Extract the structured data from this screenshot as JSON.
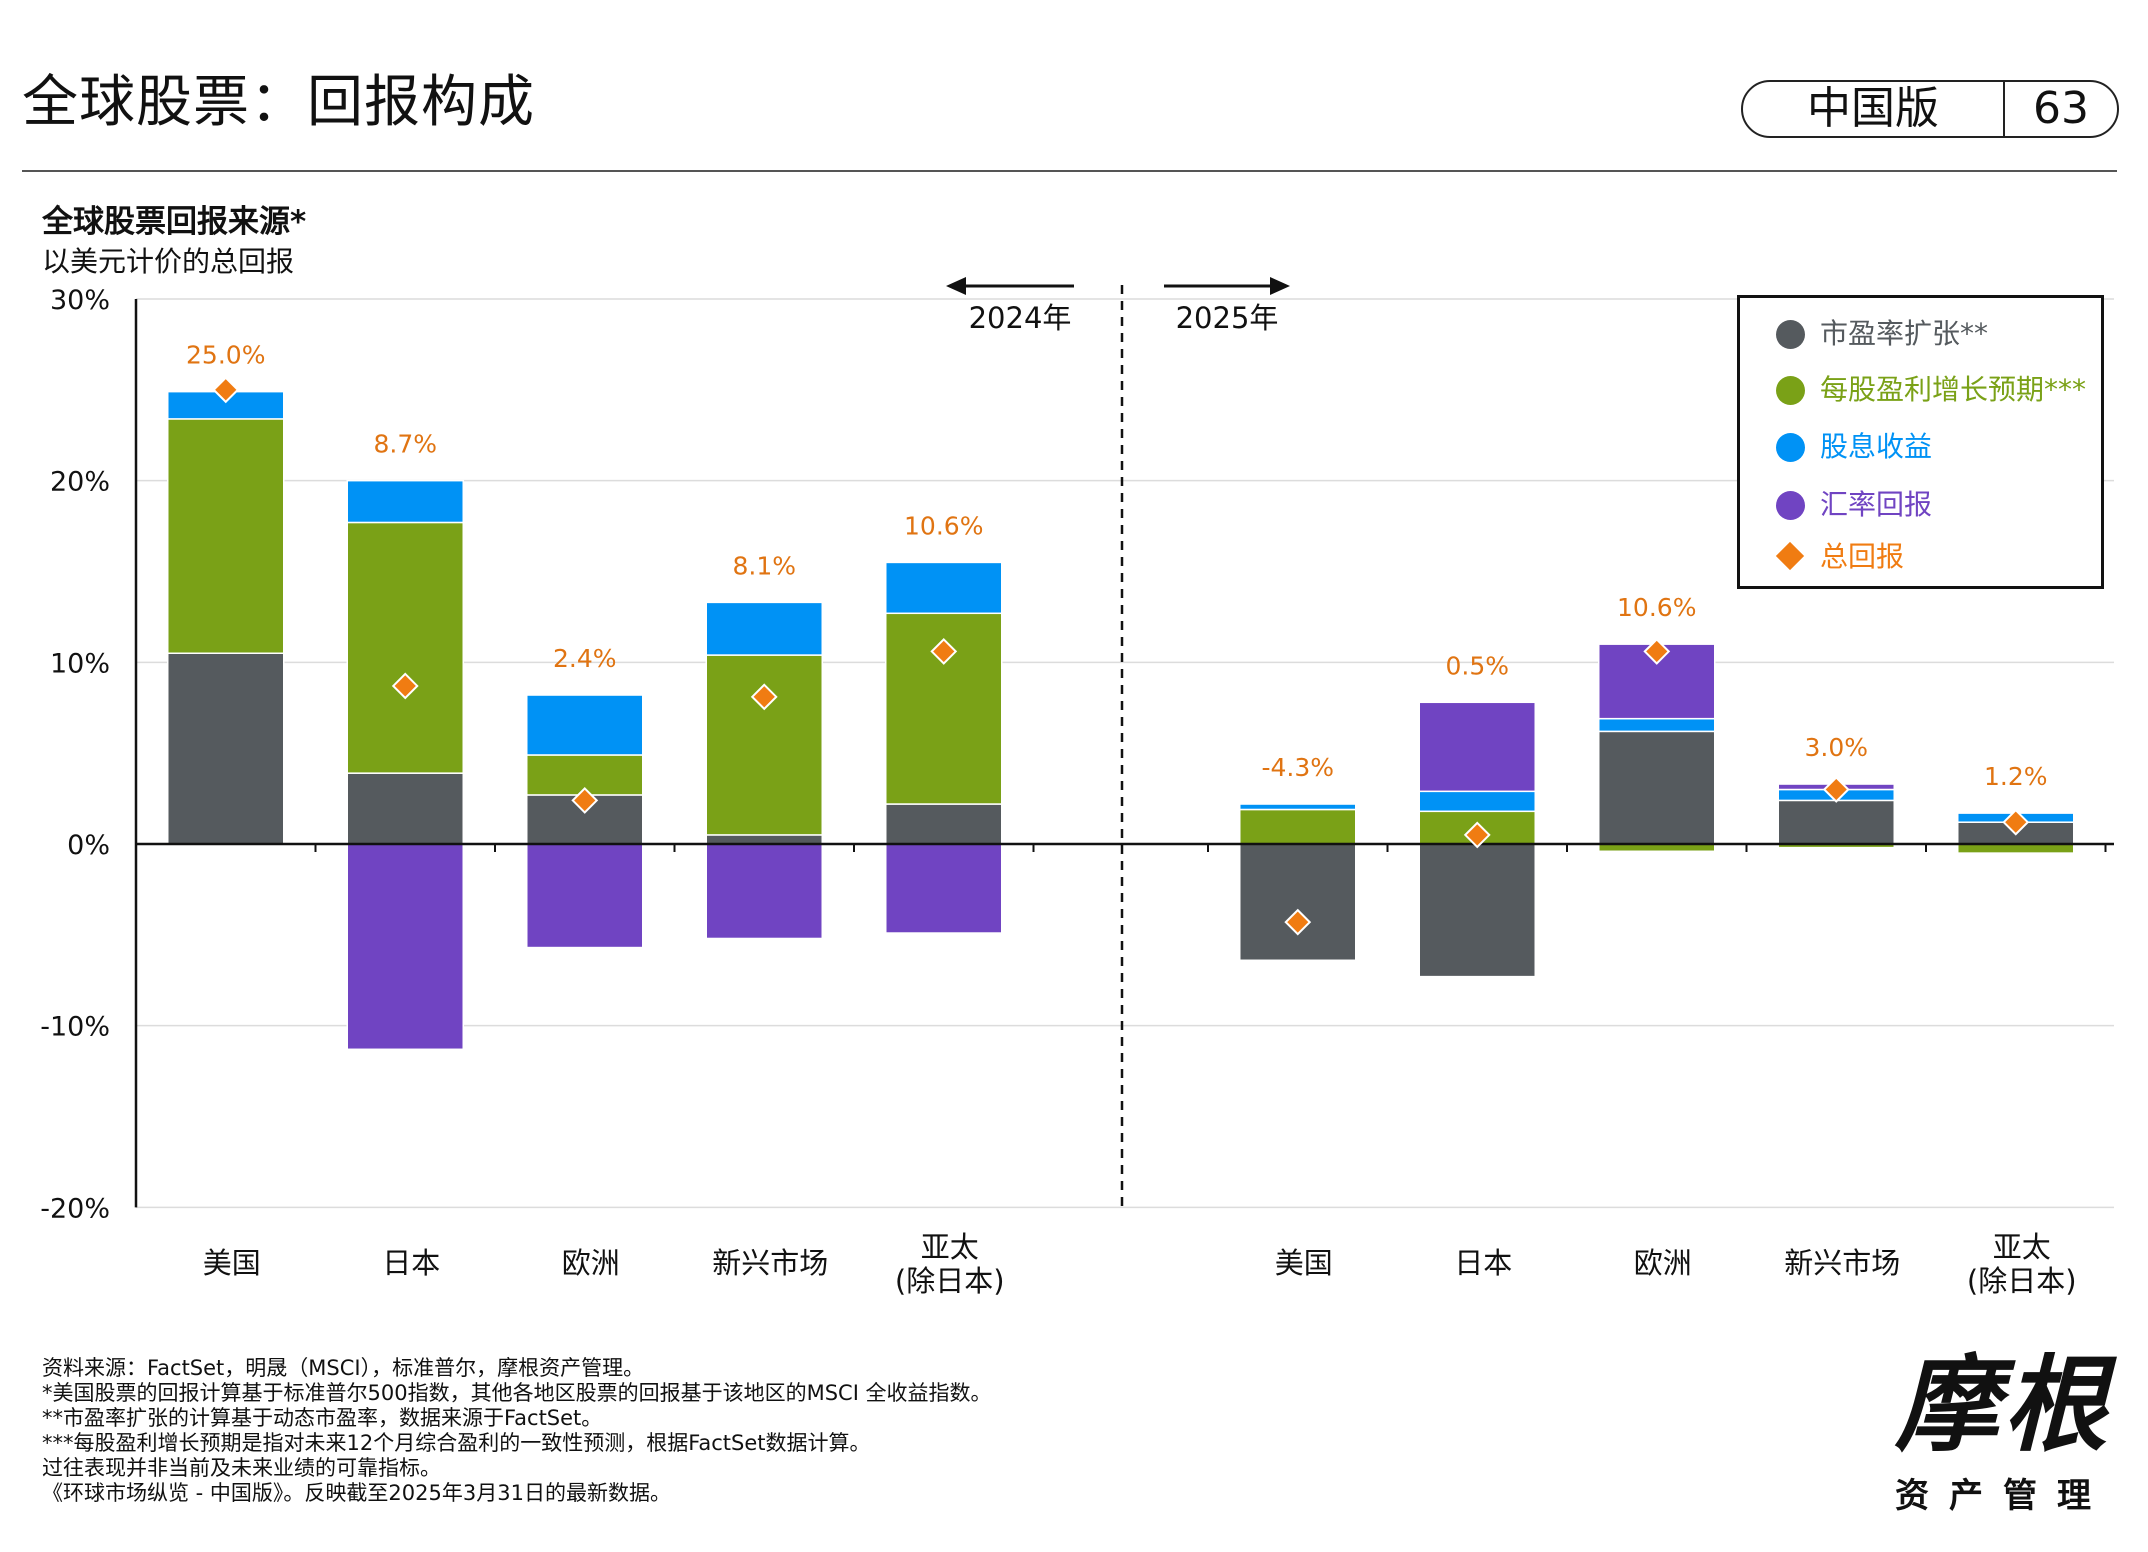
{
  "header": {
    "title": "全球股票：回报构成",
    "edition": "中国版",
    "page_number": "63"
  },
  "chart_data": {
    "type": "bar",
    "stacked": true,
    "title": "全球股票回报来源*",
    "subtitle": "以美元计价的总回报",
    "yticks": [
      "30%",
      "20%",
      "10%",
      "0%",
      "-10%",
      "-20%"
    ],
    "ylim": [
      -20,
      30
    ],
    "grid": true,
    "legend_position": "top-right",
    "period_labels": [
      "2024年",
      "2025年"
    ],
    "groups": [
      {
        "period": "2024年",
        "categories": [
          "美国",
          "日本",
          "欧洲",
          "新兴市场",
          "亚太\n(除日本)"
        ],
        "series": [
          {
            "name": "市盈率扩张**",
            "values": [
              10.5,
              3.9,
              2.7,
              0.5,
              2.2
            ]
          },
          {
            "name": "每股盈利增长预期***",
            "values": [
              12.9,
              13.8,
              2.2,
              9.9,
              10.5
            ]
          },
          {
            "name": "股息收益",
            "values": [
              1.5,
              2.3,
              3.3,
              2.9,
              2.8
            ]
          },
          {
            "name": "汇率回报",
            "values": [
              0,
              -11.3,
              -5.7,
              -5.2,
              -4.9
            ]
          }
        ],
        "total": [
          25.0,
          8.7,
          2.4,
          8.1,
          10.6
        ],
        "total_labels": [
          "25.0%",
          "8.7%",
          "2.4%",
          "8.1%",
          "10.6%"
        ]
      },
      {
        "period": "2025年",
        "categories": [
          "美国",
          "日本",
          "欧洲",
          "新兴市场",
          "亚太\n(除日本)"
        ],
        "series": [
          {
            "name": "市盈率扩张**",
            "values": [
              -6.4,
              -7.3,
              6.2,
              2.4,
              1.2
            ]
          },
          {
            "name": "每股盈利增长预期***",
            "values": [
              1.9,
              1.8,
              -0.4,
              -0.2,
              -0.5
            ]
          },
          {
            "name": "股息收益",
            "values": [
              0.3,
              1.1,
              0.7,
              0.6,
              0.5
            ]
          },
          {
            "name": "汇率回报",
            "values": [
              0,
              4.9,
              4.1,
              0.3,
              0
            ]
          }
        ],
        "total": [
          -4.3,
          0.5,
          10.6,
          3.0,
          1.2
        ],
        "total_labels": [
          "-4.3%",
          "0.5%",
          "10.6%",
          "3.0%",
          "1.2%"
        ]
      }
    ],
    "colors": {
      "pe": "#555a5e",
      "eps": "#7aa117",
      "dividend": "#0092f5",
      "fx": "#7044c2",
      "total": "#f07c12",
      "total_label": "#e07412"
    }
  },
  "legend": {
    "items": [
      {
        "label": "市盈率扩张**",
        "color": "#555a5e",
        "text_color": "#555a5e",
        "shape": "dot"
      },
      {
        "label": "每股盈利增长预期***",
        "color": "#7aa117",
        "text_color": "#7aa117",
        "shape": "dot"
      },
      {
        "label": "股息收益",
        "color": "#0092f5",
        "text_color": "#0092f5",
        "shape": "dot"
      },
      {
        "label": "汇率回报",
        "color": "#7044c2",
        "text_color": "#7044c2",
        "shape": "dot"
      },
      {
        "label": "总回报",
        "color": "#f07c12",
        "text_color": "#f07c12",
        "shape": "diamond"
      }
    ]
  },
  "footnotes": [
    "资料来源：FactSet，明晟（MSCI），标准普尔，摩根资产管理。",
    "*美国股票的回报计算基于标准普尔500指数，其他各地区股票的回报基于该地区的MSCI 全收益指数。",
    "**市盈率扩张的计算基于动态市盈率，数据来源于FactSet。",
    "***每股盈利增长预期是指对未来12个月综合盈利的一致性预测，根据FactSet数据计算。",
    "过往表现并非当前及未来业绩的可靠指标。",
    "《环球市场纵览 - 中国版》。反映截至2025年3月31日的最新数据。"
  ],
  "logo": {
    "main": "摩根",
    "sub": "资产管理"
  }
}
